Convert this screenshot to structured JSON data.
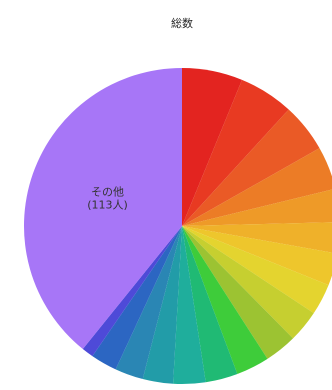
{
  "chart_data": {
    "type": "pie",
    "title": "総数",
    "start": "top",
    "direction": "clockwise",
    "slices": [
      {
        "label": "",
        "value": 6.2,
        "color": "#e32420"
      },
      {
        "label": "",
        "value": 5.6,
        "color": "#e83a22"
      },
      {
        "label": "",
        "value": 5.0,
        "color": "#ea5a26"
      },
      {
        "label": "",
        "value": 4.4,
        "color": "#ec7c26"
      },
      {
        "label": "",
        "value": 3.4,
        "color": "#ee9a28"
      },
      {
        "label": "",
        "value": 3.2,
        "color": "#efb12a"
      },
      {
        "label": "",
        "value": 3.3,
        "color": "#eec62c"
      },
      {
        "label": "",
        "value": 3.2,
        "color": "#e4d42f"
      },
      {
        "label": "",
        "value": 3.3,
        "color": "#c6cf30"
      },
      {
        "label": "",
        "value": 3.3,
        "color": "#9cc332"
      },
      {
        "label": "",
        "value": 3.4,
        "color": "#3ecc3a"
      },
      {
        "label": "",
        "value": 3.3,
        "color": "#20ba74"
      },
      {
        "label": "",
        "value": 3.3,
        "color": "#1fae9c"
      },
      {
        "label": "",
        "value": 3.1,
        "color": "#229ca8"
      },
      {
        "label": "",
        "value": 2.9,
        "color": "#2a86b4"
      },
      {
        "label": "",
        "value": 2.7,
        "color": "#2c66c2"
      },
      {
        "label": "",
        "value": 1.2,
        "color": "#4e4ad8"
      },
      {
        "label": "その他\n(113人)",
        "value": 39.2,
        "color": "#a776f7"
      }
    ]
  }
}
